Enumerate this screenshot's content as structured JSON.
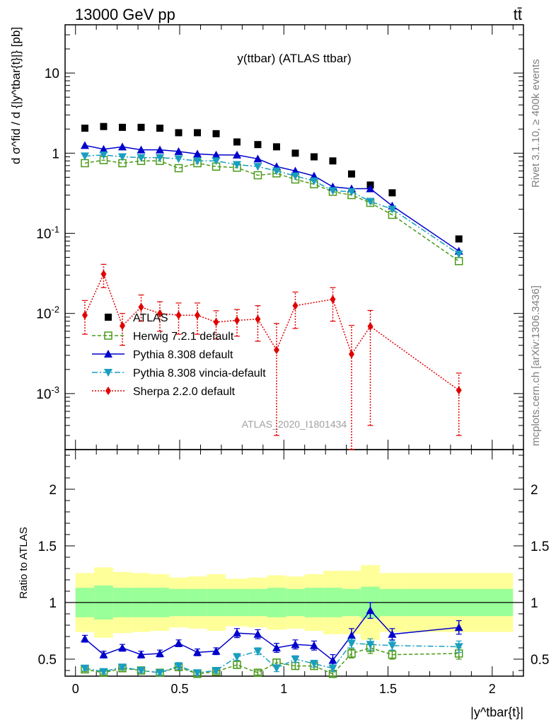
{
  "header": {
    "energy_label": "13000 GeV pp",
    "process_label": "tt̄",
    "plot_title": "y(ttbar) (ATLAS ttbar)",
    "side_label_top": "Rivet 3.1.10, ≥ 400k events",
    "side_label_bottom": "mcplots.cern.ch [arXiv:1306.3436]",
    "analysis_id": "ATLAS_2020_I1801434",
    "ylabel_main": "d σ^fid / d {|y^tbar{t}|} [pb]",
    "ylabel_ratio": "Ratio to ATLAS",
    "xlabel": "|y^tbar{t}|"
  },
  "legend": [
    {
      "key": "atlas",
      "label": "ATLAS"
    },
    {
      "key": "herwig",
      "label": "Herwig 7.2.1 default"
    },
    {
      "key": "pythia",
      "label": "Pythia 8.308 default"
    },
    {
      "key": "vincia",
      "label": "Pythia 8.308 vincia-default"
    },
    {
      "key": "sherpa",
      "label": "Sherpa 2.2.0 default"
    }
  ],
  "colors": {
    "atlas": "#000000",
    "herwig": "#4a9a1a",
    "pythia": "#0000cc",
    "vincia": "#1a9ec0",
    "sherpa": "#e00000",
    "band_inner": "#99ff99",
    "band_outer": "#ffff99"
  },
  "chart_data": {
    "type": "line",
    "main": {
      "yscale": "log",
      "ylim": [
        0.0002,
        40
      ],
      "xlim": [
        -0.05,
        2.15
      ],
      "yticks": [
        {
          "value": 0.001,
          "label": "10^-3"
        },
        {
          "value": 0.01,
          "label": "10^-2"
        },
        {
          "value": 0.1,
          "label": "10^-1"
        },
        {
          "value": 1,
          "label": "1"
        },
        {
          "value": 10,
          "label": "10"
        }
      ]
    },
    "ratio": {
      "ylim": [
        0.35,
        2.35
      ],
      "yticks": [
        0.5,
        1,
        1.5,
        2
      ]
    },
    "xticks": [
      0,
      0.5,
      1,
      1.5,
      2
    ],
    "xtick_labels": [
      "0",
      "0.5",
      "1",
      "1.5",
      "2"
    ],
    "bin_edges": [
      0,
      0.09,
      0.18,
      0.27,
      0.36,
      0.45,
      0.54,
      0.63,
      0.72,
      0.83,
      0.92,
      1.01,
      1.1,
      1.19,
      1.28,
      1.37,
      1.46,
      1.58,
      2.1
    ],
    "x": [
      0.045,
      0.135,
      0.225,
      0.315,
      0.405,
      0.495,
      0.585,
      0.675,
      0.775,
      0.875,
      0.965,
      1.055,
      1.145,
      1.235,
      1.325,
      1.415,
      1.52,
      1.84
    ],
    "series": [
      {
        "name": "ATLAS",
        "key": "atlas",
        "values": [
          2.05,
          2.15,
          2.1,
          2.1,
          2.05,
          1.8,
          1.8,
          1.75,
          1.38,
          1.28,
          1.2,
          1.0,
          0.9,
          0.8,
          0.55,
          0.4,
          0.32,
          0.085
        ]
      },
      {
        "name": "Herwig 7.2.1 default",
        "key": "herwig",
        "values": [
          0.75,
          0.82,
          0.75,
          0.8,
          0.8,
          0.65,
          0.75,
          0.68,
          0.66,
          0.53,
          0.56,
          0.47,
          0.41,
          0.33,
          0.3,
          0.24,
          0.17,
          0.045
        ],
        "ratio": [
          0.41,
          0.38,
          0.42,
          0.4,
          0.38,
          0.43,
          0.37,
          0.39,
          0.45,
          0.38,
          0.47,
          0.44,
          0.44,
          0.37,
          0.55,
          0.6,
          0.54,
          0.55
        ],
        "ratio_err": [
          0.02,
          0.02,
          0.02,
          0.02,
          0.02,
          0.03,
          0.02,
          0.02,
          0.03,
          0.02,
          0.03,
          0.03,
          0.03,
          0.03,
          0.04,
          0.05,
          0.04,
          0.05
        ]
      },
      {
        "name": "Pythia 8.308 default",
        "key": "pythia",
        "values": [
          1.25,
          1.12,
          1.2,
          1.1,
          1.1,
          1.05,
          0.98,
          0.95,
          0.95,
          0.85,
          0.68,
          0.6,
          0.52,
          0.38,
          0.36,
          0.36,
          0.22,
          0.06
        ],
        "ratio": [
          0.68,
          0.54,
          0.6,
          0.54,
          0.55,
          0.64,
          0.56,
          0.57,
          0.73,
          0.72,
          0.6,
          0.63,
          0.62,
          0.49,
          0.71,
          0.93,
          0.72,
          0.78
        ],
        "ratio_err": [
          0.03,
          0.03,
          0.03,
          0.03,
          0.03,
          0.03,
          0.03,
          0.03,
          0.04,
          0.04,
          0.04,
          0.04,
          0.04,
          0.05,
          0.06,
          0.07,
          0.05,
          0.06
        ]
      },
      {
        "name": "Pythia 8.308 vincia-default",
        "key": "vincia",
        "values": [
          0.92,
          0.95,
          0.9,
          0.88,
          0.88,
          0.85,
          0.8,
          0.8,
          0.72,
          0.68,
          0.6,
          0.52,
          0.45,
          0.34,
          0.33,
          0.25,
          0.2,
          0.055
        ],
        "ratio": [
          0.42,
          0.39,
          0.43,
          0.4,
          0.38,
          0.44,
          0.38,
          0.4,
          0.52,
          0.57,
          0.42,
          0.5,
          0.46,
          0.42,
          0.64,
          0.63,
          0.62,
          0.61
        ],
        "ratio_err": [
          0.02,
          0.02,
          0.02,
          0.02,
          0.02,
          0.03,
          0.02,
          0.02,
          0.03,
          0.03,
          0.03,
          0.03,
          0.03,
          0.03,
          0.04,
          0.05,
          0.04,
          0.05
        ]
      },
      {
        "name": "Sherpa 2.2.0 default",
        "key": "sherpa",
        "values": [
          0.0095,
          0.031,
          0.007,
          0.012,
          0.01,
          0.0095,
          0.0095,
          0.0078,
          0.0082,
          0.0085,
          0.0035,
          0.0125,
          0.015,
          0.0031,
          0.0069,
          0.0011
        ],
        "x": [
          0.045,
          0.135,
          0.225,
          0.315,
          0.405,
          0.495,
          0.585,
          0.675,
          0.775,
          0.875,
          0.965,
          1.055,
          1.235,
          1.325,
          1.415,
          1.84
        ],
        "err_low": [
          0.004,
          0.01,
          0.003,
          0.004,
          0.004,
          0.004,
          0.004,
          0.003,
          0.003,
          0.004,
          0.0032,
          0.006,
          0.007,
          0.0029,
          0.0065,
          0.0008
        ],
        "err_high": [
          0.005,
          0.01,
          0.003,
          0.005,
          0.004,
          0.004,
          0.004,
          0.003,
          0.003,
          0.004,
          0.004,
          0.006,
          0.006,
          0.004,
          0.004,
          0.0007
        ]
      }
    ],
    "ratio_band_inner": [
      0.13,
      0.15,
      0.13,
      0.13,
      0.13,
      0.12,
      0.12,
      0.12,
      0.12,
      0.12,
      0.13,
      0.12,
      0.13,
      0.13,
      0.12,
      0.14,
      0.12,
      0.12
    ],
    "ratio_band_outer": [
      0.26,
      0.31,
      0.27,
      0.26,
      0.25,
      0.22,
      0.23,
      0.25,
      0.21,
      0.22,
      0.24,
      0.23,
      0.25,
      0.28,
      0.28,
      0.33,
      0.26,
      0.26
    ]
  }
}
